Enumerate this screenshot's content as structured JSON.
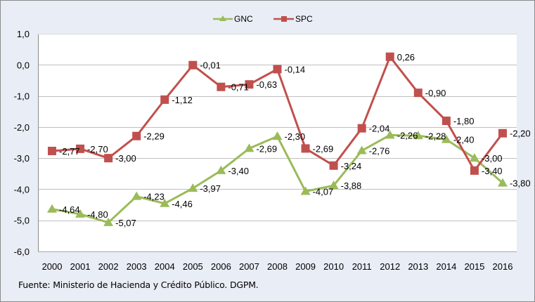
{
  "chart_data": {
    "type": "line",
    "title": "",
    "xlabel": "",
    "ylabel": "",
    "categories": [
      "2000",
      "2001",
      "2002",
      "2003",
      "2004",
      "2005",
      "2006",
      "2007",
      "2008",
      "2009",
      "2010",
      "2011",
      "2012",
      "2013",
      "2014",
      "2015",
      "2016"
    ],
    "ylim": [
      -6.0,
      1.0
    ],
    "yticks": [
      1.0,
      0.0,
      -1.0,
      -2.0,
      -3.0,
      -4.0,
      -5.0,
      -6.0
    ],
    "ytick_labels": [
      "1,0",
      "0,0",
      "-1,0",
      "-2,0",
      "-3,0",
      "-4,0",
      "-5,0",
      "-6,0"
    ],
    "grid": true,
    "legend_position": "top",
    "series": [
      {
        "name": "GNC",
        "color": "#9BBB59",
        "marker": "triangle",
        "values": [
          -4.64,
          -4.8,
          -5.07,
          -4.23,
          -4.46,
          -3.97,
          -3.4,
          -2.69,
          -2.3,
          -4.07,
          -3.88,
          -2.76,
          -2.26,
          -2.28,
          -2.4,
          -3.0,
          -3.8
        ],
        "labels": [
          "-4,64",
          "-4,80",
          "-5,07",
          "-4,23",
          "-4,46",
          "-3,97",
          "-3,40",
          "-2,69",
          "-2,30",
          "-4,07",
          "-3,88",
          "-2,76",
          "-2,26",
          "-2,28",
          "-2,40",
          "-3,00",
          "-3,80"
        ]
      },
      {
        "name": "SPC",
        "color": "#C0504D",
        "marker": "square",
        "values": [
          -2.77,
          -2.7,
          -3.0,
          -2.29,
          -1.12,
          -0.01,
          -0.71,
          -0.63,
          -0.14,
          -2.69,
          -3.24,
          -2.04,
          0.26,
          -0.9,
          -1.8,
          -3.4,
          -2.2
        ],
        "labels": [
          "-2,77",
          "-2,70",
          "-3,00",
          "-2,29",
          "-1,12",
          "-0,01",
          "-0,71",
          "-0,63",
          "-0,14",
          "-2,69",
          "-3,24",
          "-2,04",
          "0,26",
          "-0,90",
          "-1,80",
          "-3,40",
          "-2,20"
        ]
      }
    ]
  },
  "source": "Fuente:  Ministerio de Hacienda y Crédito Público. DGPM."
}
